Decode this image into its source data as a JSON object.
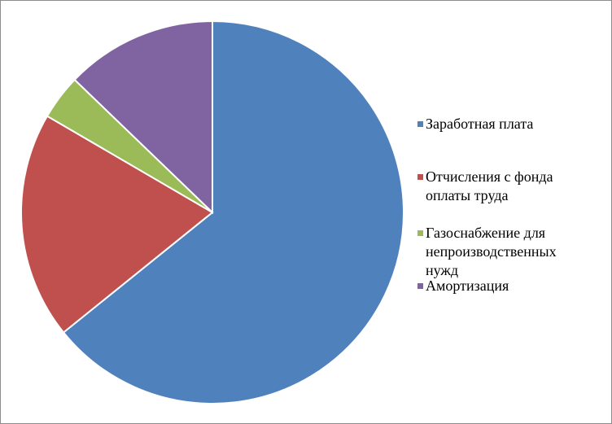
{
  "chart_data": {
    "type": "pie",
    "categories": [
      "Заработная плата",
      "Отчисления с фонда оплаты труда",
      "Газоснабжение для непроизводственных нужд",
      "Амортизация"
    ],
    "values": [
      64.2,
      19.2,
      3.8,
      12.8
    ],
    "colors": [
      "#4f81bd",
      "#c0504d",
      "#9bbb59",
      "#8064a2"
    ],
    "legend": "right"
  }
}
